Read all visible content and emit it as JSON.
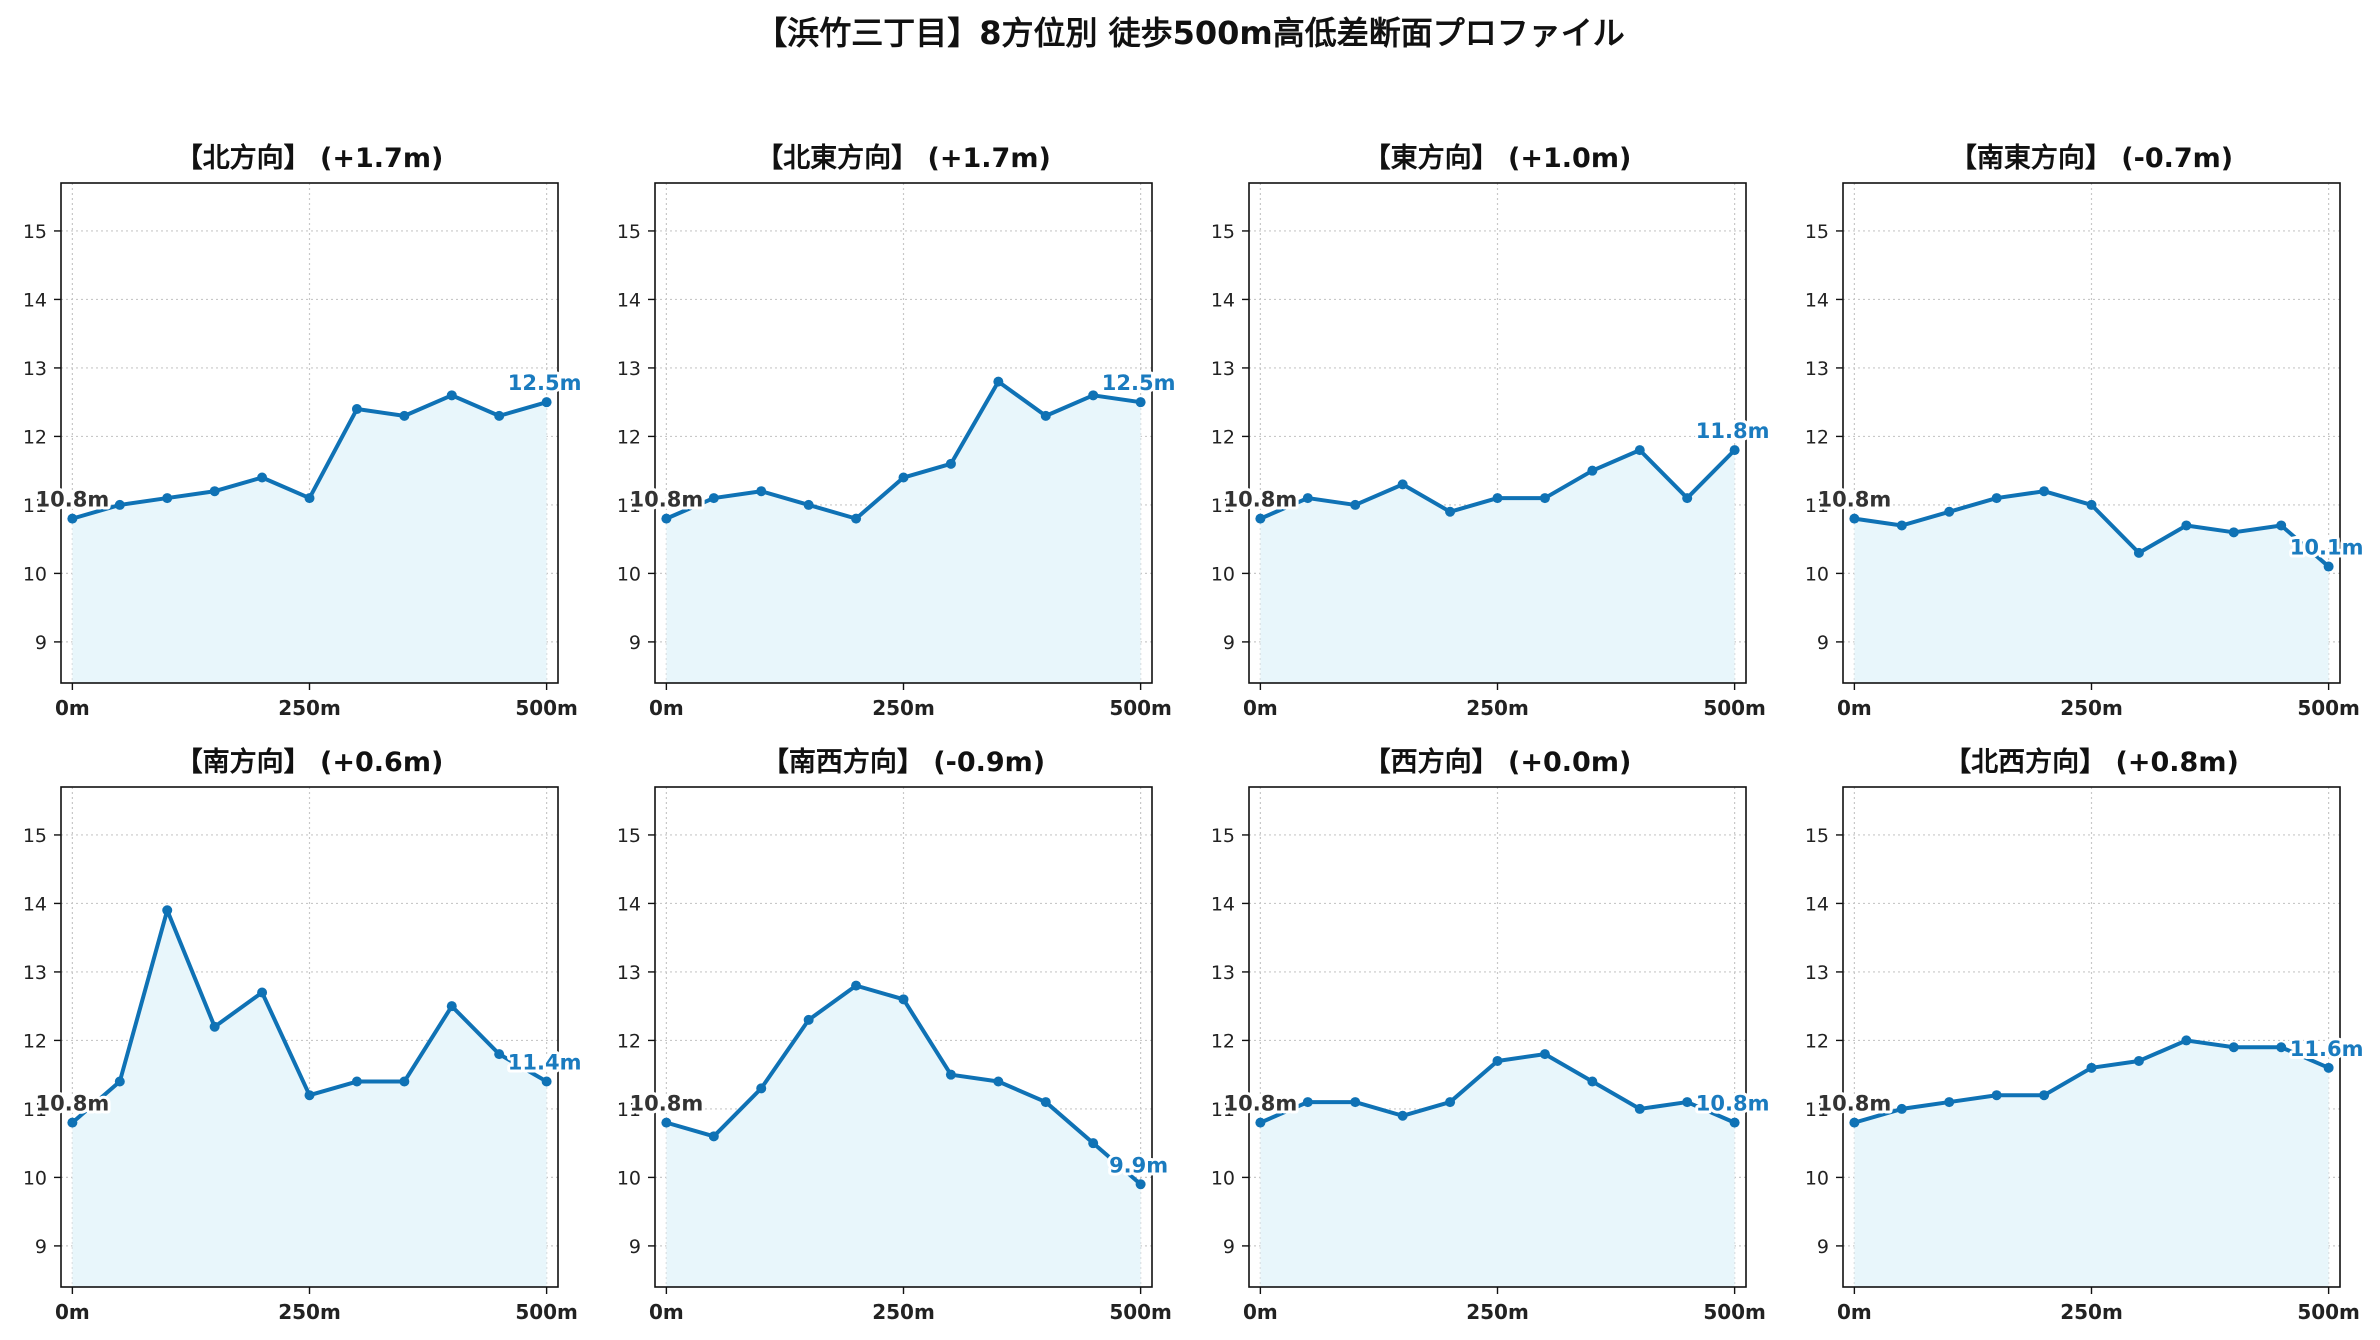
{
  "title": "【浜竹三丁目】8方位別 徒歩500m高低差断面プロファイル",
  "colors": {
    "line": "#0f72b5",
    "fill": "#e8f6fb",
    "grid": "#c8c8c8",
    "end_label": "#1a7bbf",
    "start_label": "#333333"
  },
  "chart_data": [
    {
      "type": "area",
      "title": "【北方向】 (+1.7m)",
      "x": [
        0,
        50,
        100,
        150,
        200,
        250,
        300,
        350,
        400,
        450,
        500
      ],
      "y": [
        10.8,
        11.0,
        11.1,
        11.2,
        11.4,
        11.1,
        12.4,
        12.3,
        12.6,
        12.3,
        12.5
      ],
      "start_label": "10.8m",
      "end_label": "12.5m",
      "x_ticks": [
        0,
        250,
        500
      ],
      "x_tick_labels": [
        "0m",
        "250m",
        "500m"
      ],
      "y_ticks": [
        9,
        10,
        11,
        12,
        13,
        14,
        15
      ],
      "ylim": [
        8.4,
        15.7
      ],
      "xlim": [
        -12,
        512
      ],
      "grid": true
    },
    {
      "type": "area",
      "title": "【北東方向】 (+1.7m)",
      "x": [
        0,
        50,
        100,
        150,
        200,
        250,
        300,
        350,
        400,
        450,
        500
      ],
      "y": [
        10.8,
        11.1,
        11.2,
        11.0,
        10.8,
        11.4,
        11.6,
        12.8,
        12.3,
        12.6,
        12.5
      ],
      "start_label": "10.8m",
      "end_label": "12.5m",
      "x_ticks": [
        0,
        250,
        500
      ],
      "x_tick_labels": [
        "0m",
        "250m",
        "500m"
      ],
      "y_ticks": [
        9,
        10,
        11,
        12,
        13,
        14,
        15
      ],
      "ylim": [
        8.4,
        15.7
      ],
      "xlim": [
        -12,
        512
      ],
      "grid": true
    },
    {
      "type": "area",
      "title": "【東方向】 (+1.0m)",
      "x": [
        0,
        50,
        100,
        150,
        200,
        250,
        300,
        350,
        400,
        450,
        500
      ],
      "y": [
        10.8,
        11.1,
        11.0,
        11.3,
        10.9,
        11.1,
        11.1,
        11.5,
        11.8,
        11.1,
        11.8
      ],
      "start_label": "10.8m",
      "end_label": "11.8m",
      "x_ticks": [
        0,
        250,
        500
      ],
      "x_tick_labels": [
        "0m",
        "250m",
        "500m"
      ],
      "y_ticks": [
        9,
        10,
        11,
        12,
        13,
        14,
        15
      ],
      "ylim": [
        8.4,
        15.7
      ],
      "xlim": [
        -12,
        512
      ],
      "grid": true
    },
    {
      "type": "area",
      "title": "【南東方向】 (-0.7m)",
      "x": [
        0,
        50,
        100,
        150,
        200,
        250,
        300,
        350,
        400,
        450,
        500
      ],
      "y": [
        10.8,
        10.7,
        10.9,
        11.1,
        11.2,
        11.0,
        10.3,
        10.7,
        10.6,
        10.7,
        10.1
      ],
      "start_label": "10.8m",
      "end_label": "10.1m",
      "x_ticks": [
        0,
        250,
        500
      ],
      "x_tick_labels": [
        "0m",
        "250m",
        "500m"
      ],
      "y_ticks": [
        9,
        10,
        11,
        12,
        13,
        14,
        15
      ],
      "ylim": [
        8.4,
        15.7
      ],
      "xlim": [
        -12,
        512
      ],
      "grid": true
    },
    {
      "type": "area",
      "title": "【南方向】 (+0.6m)",
      "x": [
        0,
        50,
        100,
        150,
        200,
        250,
        300,
        350,
        400,
        450,
        500
      ],
      "y": [
        10.8,
        11.4,
        13.9,
        12.2,
        12.7,
        11.2,
        11.4,
        11.4,
        12.5,
        11.8,
        11.4
      ],
      "start_label": "10.8m",
      "end_label": "11.4m",
      "x_ticks": [
        0,
        250,
        500
      ],
      "x_tick_labels": [
        "0m",
        "250m",
        "500m"
      ],
      "y_ticks": [
        9,
        10,
        11,
        12,
        13,
        14,
        15
      ],
      "ylim": [
        8.4,
        15.7
      ],
      "xlim": [
        -12,
        512
      ],
      "grid": true
    },
    {
      "type": "area",
      "title": "【南西方向】 (-0.9m)",
      "x": [
        0,
        50,
        100,
        150,
        200,
        250,
        300,
        350,
        400,
        450,
        500
      ],
      "y": [
        10.8,
        10.6,
        11.3,
        12.3,
        12.8,
        12.6,
        11.5,
        11.4,
        11.1,
        10.5,
        9.9
      ],
      "start_label": "10.8m",
      "end_label": "9.9m",
      "x_ticks": [
        0,
        250,
        500
      ],
      "x_tick_labels": [
        "0m",
        "250m",
        "500m"
      ],
      "y_ticks": [
        9,
        10,
        11,
        12,
        13,
        14,
        15
      ],
      "ylim": [
        8.4,
        15.7
      ],
      "xlim": [
        -12,
        512
      ],
      "grid": true
    },
    {
      "type": "area",
      "title": "【西方向】 (+0.0m)",
      "x": [
        0,
        50,
        100,
        150,
        200,
        250,
        300,
        350,
        400,
        450,
        500
      ],
      "y": [
        10.8,
        11.1,
        11.1,
        10.9,
        11.1,
        11.7,
        11.8,
        11.4,
        11.0,
        11.1,
        10.8
      ],
      "start_label": "10.8m",
      "end_label": "10.8m",
      "x_ticks": [
        0,
        250,
        500
      ],
      "x_tick_labels": [
        "0m",
        "250m",
        "500m"
      ],
      "y_ticks": [
        9,
        10,
        11,
        12,
        13,
        14,
        15
      ],
      "ylim": [
        8.4,
        15.7
      ],
      "xlim": [
        -12,
        512
      ],
      "grid": true
    },
    {
      "type": "area",
      "title": "【北西方向】 (+0.8m)",
      "x": [
        0,
        50,
        100,
        150,
        200,
        250,
        300,
        350,
        400,
        450,
        500
      ],
      "y": [
        10.8,
        11.0,
        11.1,
        11.2,
        11.2,
        11.6,
        11.7,
        12.0,
        11.9,
        11.9,
        11.6
      ],
      "start_label": "10.8m",
      "end_label": "11.6m",
      "x_ticks": [
        0,
        250,
        500
      ],
      "x_tick_labels": [
        "0m",
        "250m",
        "500m"
      ],
      "y_ticks": [
        9,
        10,
        11,
        12,
        13,
        14,
        15
      ],
      "ylim": [
        8.4,
        15.7
      ],
      "xlim": [
        -12,
        512
      ],
      "grid": true
    }
  ]
}
